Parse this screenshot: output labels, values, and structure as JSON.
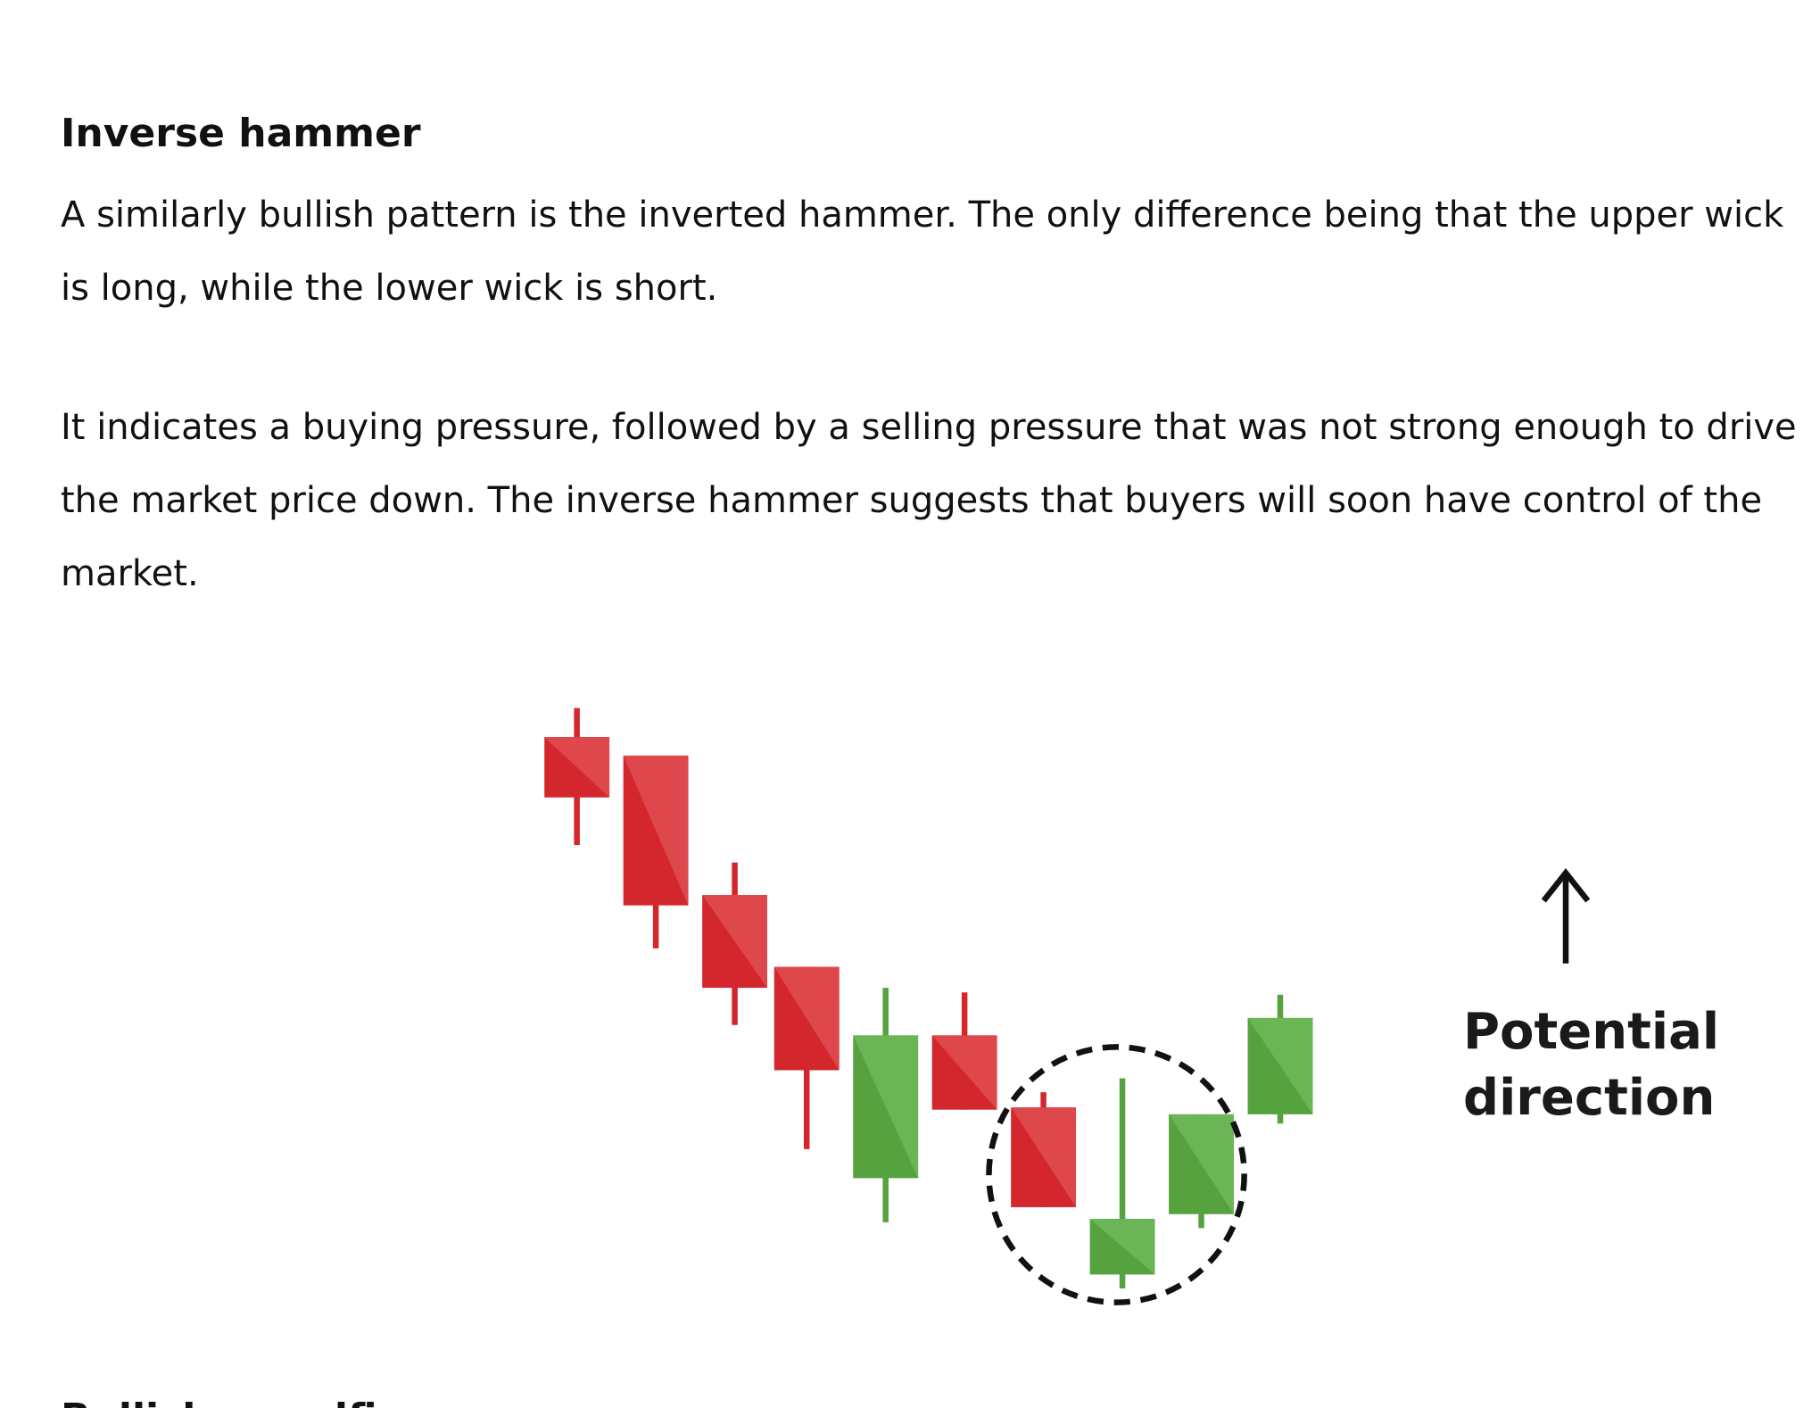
{
  "heading": "Inverse hammer",
  "paragraphs": [
    "A similarly bullish pattern is the inverted hammer. The only difference being that the upper wick is long, while the lower wick is short.",
    "It indicates a buying pressure, followed by a selling pressure that was not strong enough to drive the market price down. The inverse hammer suggests that buyers will soon have control of the market."
  ],
  "figure": {
    "label": "Potential direction"
  },
  "next_heading": "Bullish engulfing"
}
